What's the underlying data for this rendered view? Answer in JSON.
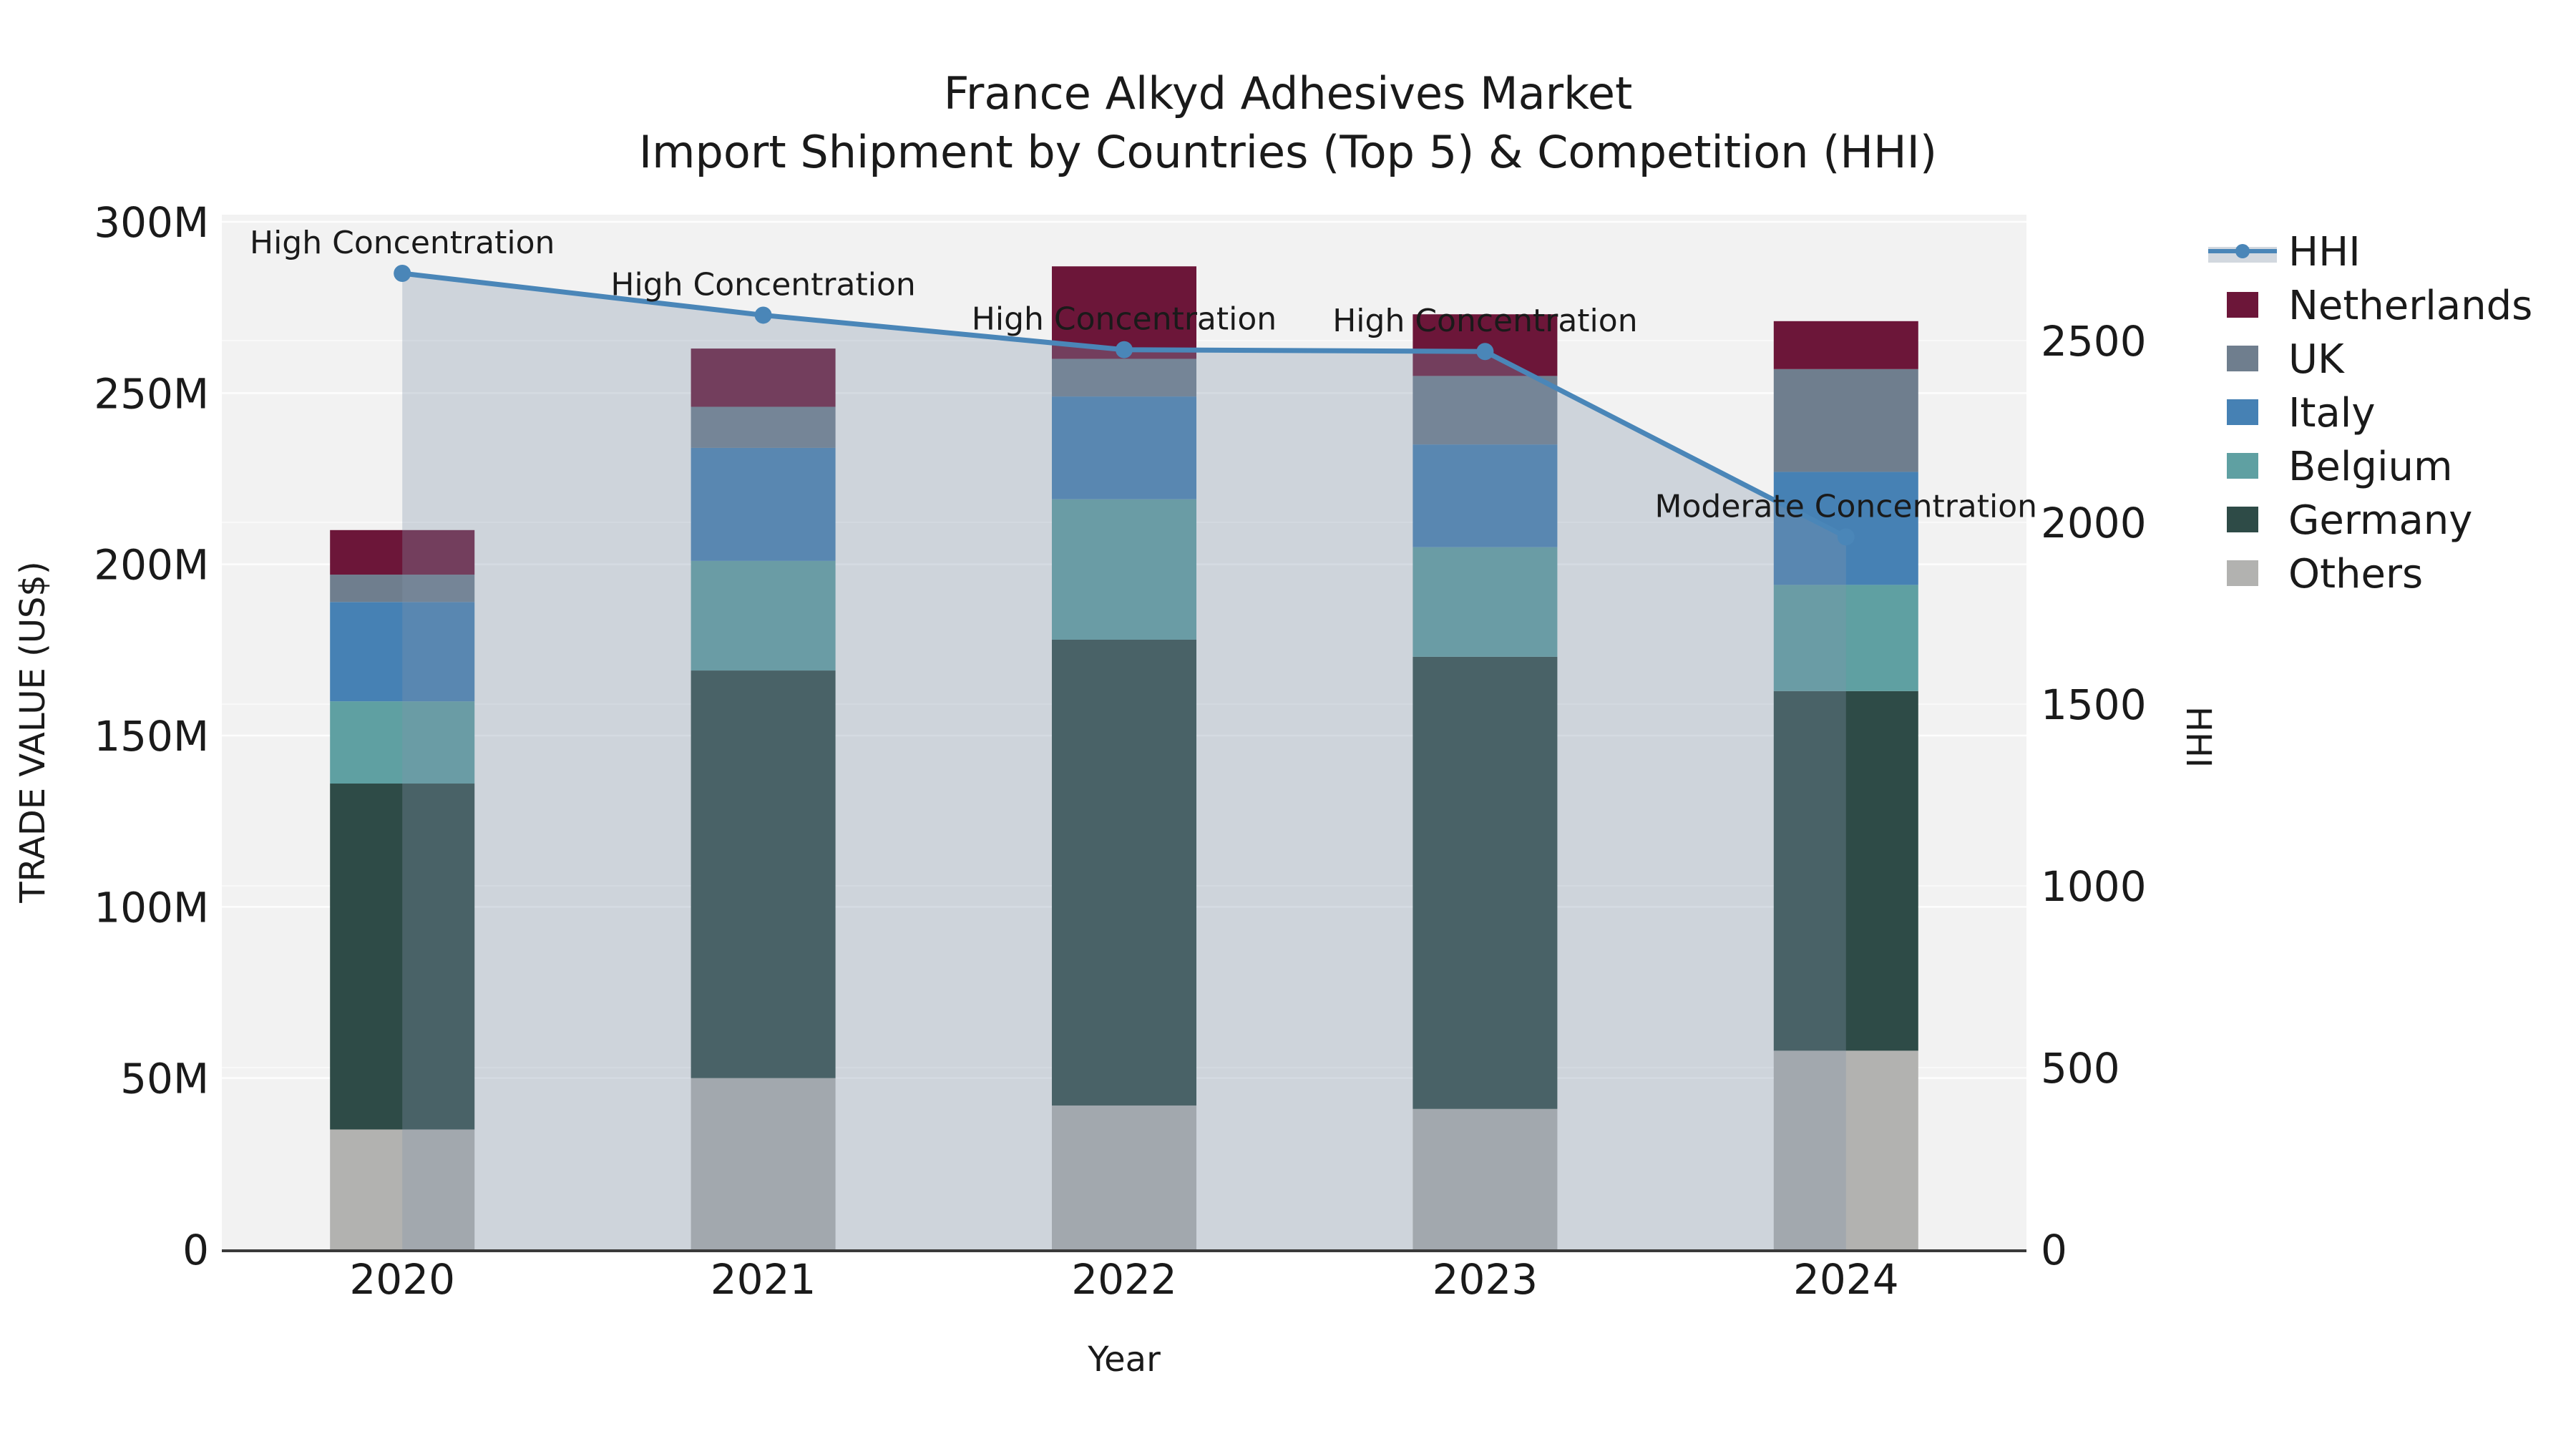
{
  "title": {
    "line1": "France Alkyd Adhesives Market",
    "line2": "Import Shipment by Countries (Top 5) & Competition (HHI)"
  },
  "axes": {
    "y_left": {
      "label": "TRADE VALUE (US$)",
      "tick_labels": [
        "0",
        "50M",
        "100M",
        "150M",
        "200M",
        "250M",
        "300M"
      ],
      "tick_values": [
        0,
        50,
        100,
        150,
        200,
        250,
        300
      ],
      "range_millions": [
        0,
        300
      ]
    },
    "y_right": {
      "label": "HHI",
      "tick_labels": [
        "0",
        "500",
        "1000",
        "1500",
        "2000",
        "2500"
      ],
      "tick_values": [
        0,
        500,
        1000,
        1500,
        2000,
        2500
      ],
      "range": [
        0,
        2846
      ]
    },
    "x": {
      "label": "Year",
      "tick_labels": [
        "2020",
        "2021",
        "2022",
        "2023",
        "2024"
      ]
    }
  },
  "legend": {
    "items": [
      {
        "label": "HHI",
        "type": "line",
        "color": "#4a86b8",
        "band_color": "#d2d8df"
      },
      {
        "label": "Netherlands",
        "type": "swatch",
        "color": "#6c1639"
      },
      {
        "label": "UK",
        "type": "swatch",
        "color": "#6f7e8e"
      },
      {
        "label": "Italy",
        "type": "swatch",
        "color": "#4681b4"
      },
      {
        "label": "Belgium",
        "type": "swatch",
        "color": "#5fa0a2"
      },
      {
        "label": "Germany",
        "type": "swatch",
        "color": "#2e4b47"
      },
      {
        "label": "Others",
        "type": "swatch",
        "color": "#b2b2b0"
      }
    ]
  },
  "chart_data": {
    "type": "bar",
    "subtype": "stacked-bars-with-line-area",
    "title": "France Alkyd Adhesives Market",
    "subtitle": "Import Shipment by Countries (Top 5) & Competition (HHI)",
    "xlabel": "Year",
    "ylabel_left": "TRADE VALUE (US$)",
    "ylabel_right": "HHI",
    "categories": [
      "2020",
      "2021",
      "2022",
      "2023",
      "2024"
    ],
    "stack_order_bottom_to_top": [
      "Others",
      "Germany",
      "Belgium",
      "Italy",
      "UK",
      "Netherlands"
    ],
    "series": [
      {
        "name": "Others",
        "color": "#b2b2b0",
        "values_millions_usd": [
          35,
          50,
          42,
          41,
          58
        ]
      },
      {
        "name": "Germany",
        "color": "#2e4b47",
        "values_millions_usd": [
          101,
          119,
          136,
          132,
          105
        ]
      },
      {
        "name": "Belgium",
        "color": "#5fa0a2",
        "values_millions_usd": [
          24,
          32,
          41,
          32,
          31
        ]
      },
      {
        "name": "Italy",
        "color": "#4681b4",
        "values_millions_usd": [
          29,
          33,
          30,
          30,
          33
        ]
      },
      {
        "name": "UK",
        "color": "#6f7e8e",
        "values_millions_usd": [
          8,
          12,
          11,
          20,
          30
        ]
      },
      {
        "name": "Netherlands",
        "color": "#6c1639",
        "values_millions_usd": [
          13,
          17,
          27,
          18,
          14
        ]
      }
    ],
    "bar_totals_millions_usd": [
      210,
      263,
      287,
      273,
      271
    ],
    "line_series": {
      "name": "HHI",
      "axis": "right",
      "values": [
        2685,
        2570,
        2475,
        2470,
        1960
      ],
      "color": "#4a86b8",
      "area_fill_color": "rgba(131,149,171,0.32)",
      "markers": true
    },
    "annotations": [
      {
        "x_index": 0,
        "text": "High Concentration"
      },
      {
        "x_index": 1,
        "text": "High Concentration"
      },
      {
        "x_index": 2,
        "text": "High Concentration"
      },
      {
        "x_index": 3,
        "text": "High Concentration"
      },
      {
        "x_index": 4,
        "text": "Moderate Concentration"
      }
    ],
    "grid": true,
    "legend_position": "right-outside",
    "ylim_left_millions": [
      0,
      300
    ],
    "ylim_right": [
      0,
      2846
    ]
  }
}
